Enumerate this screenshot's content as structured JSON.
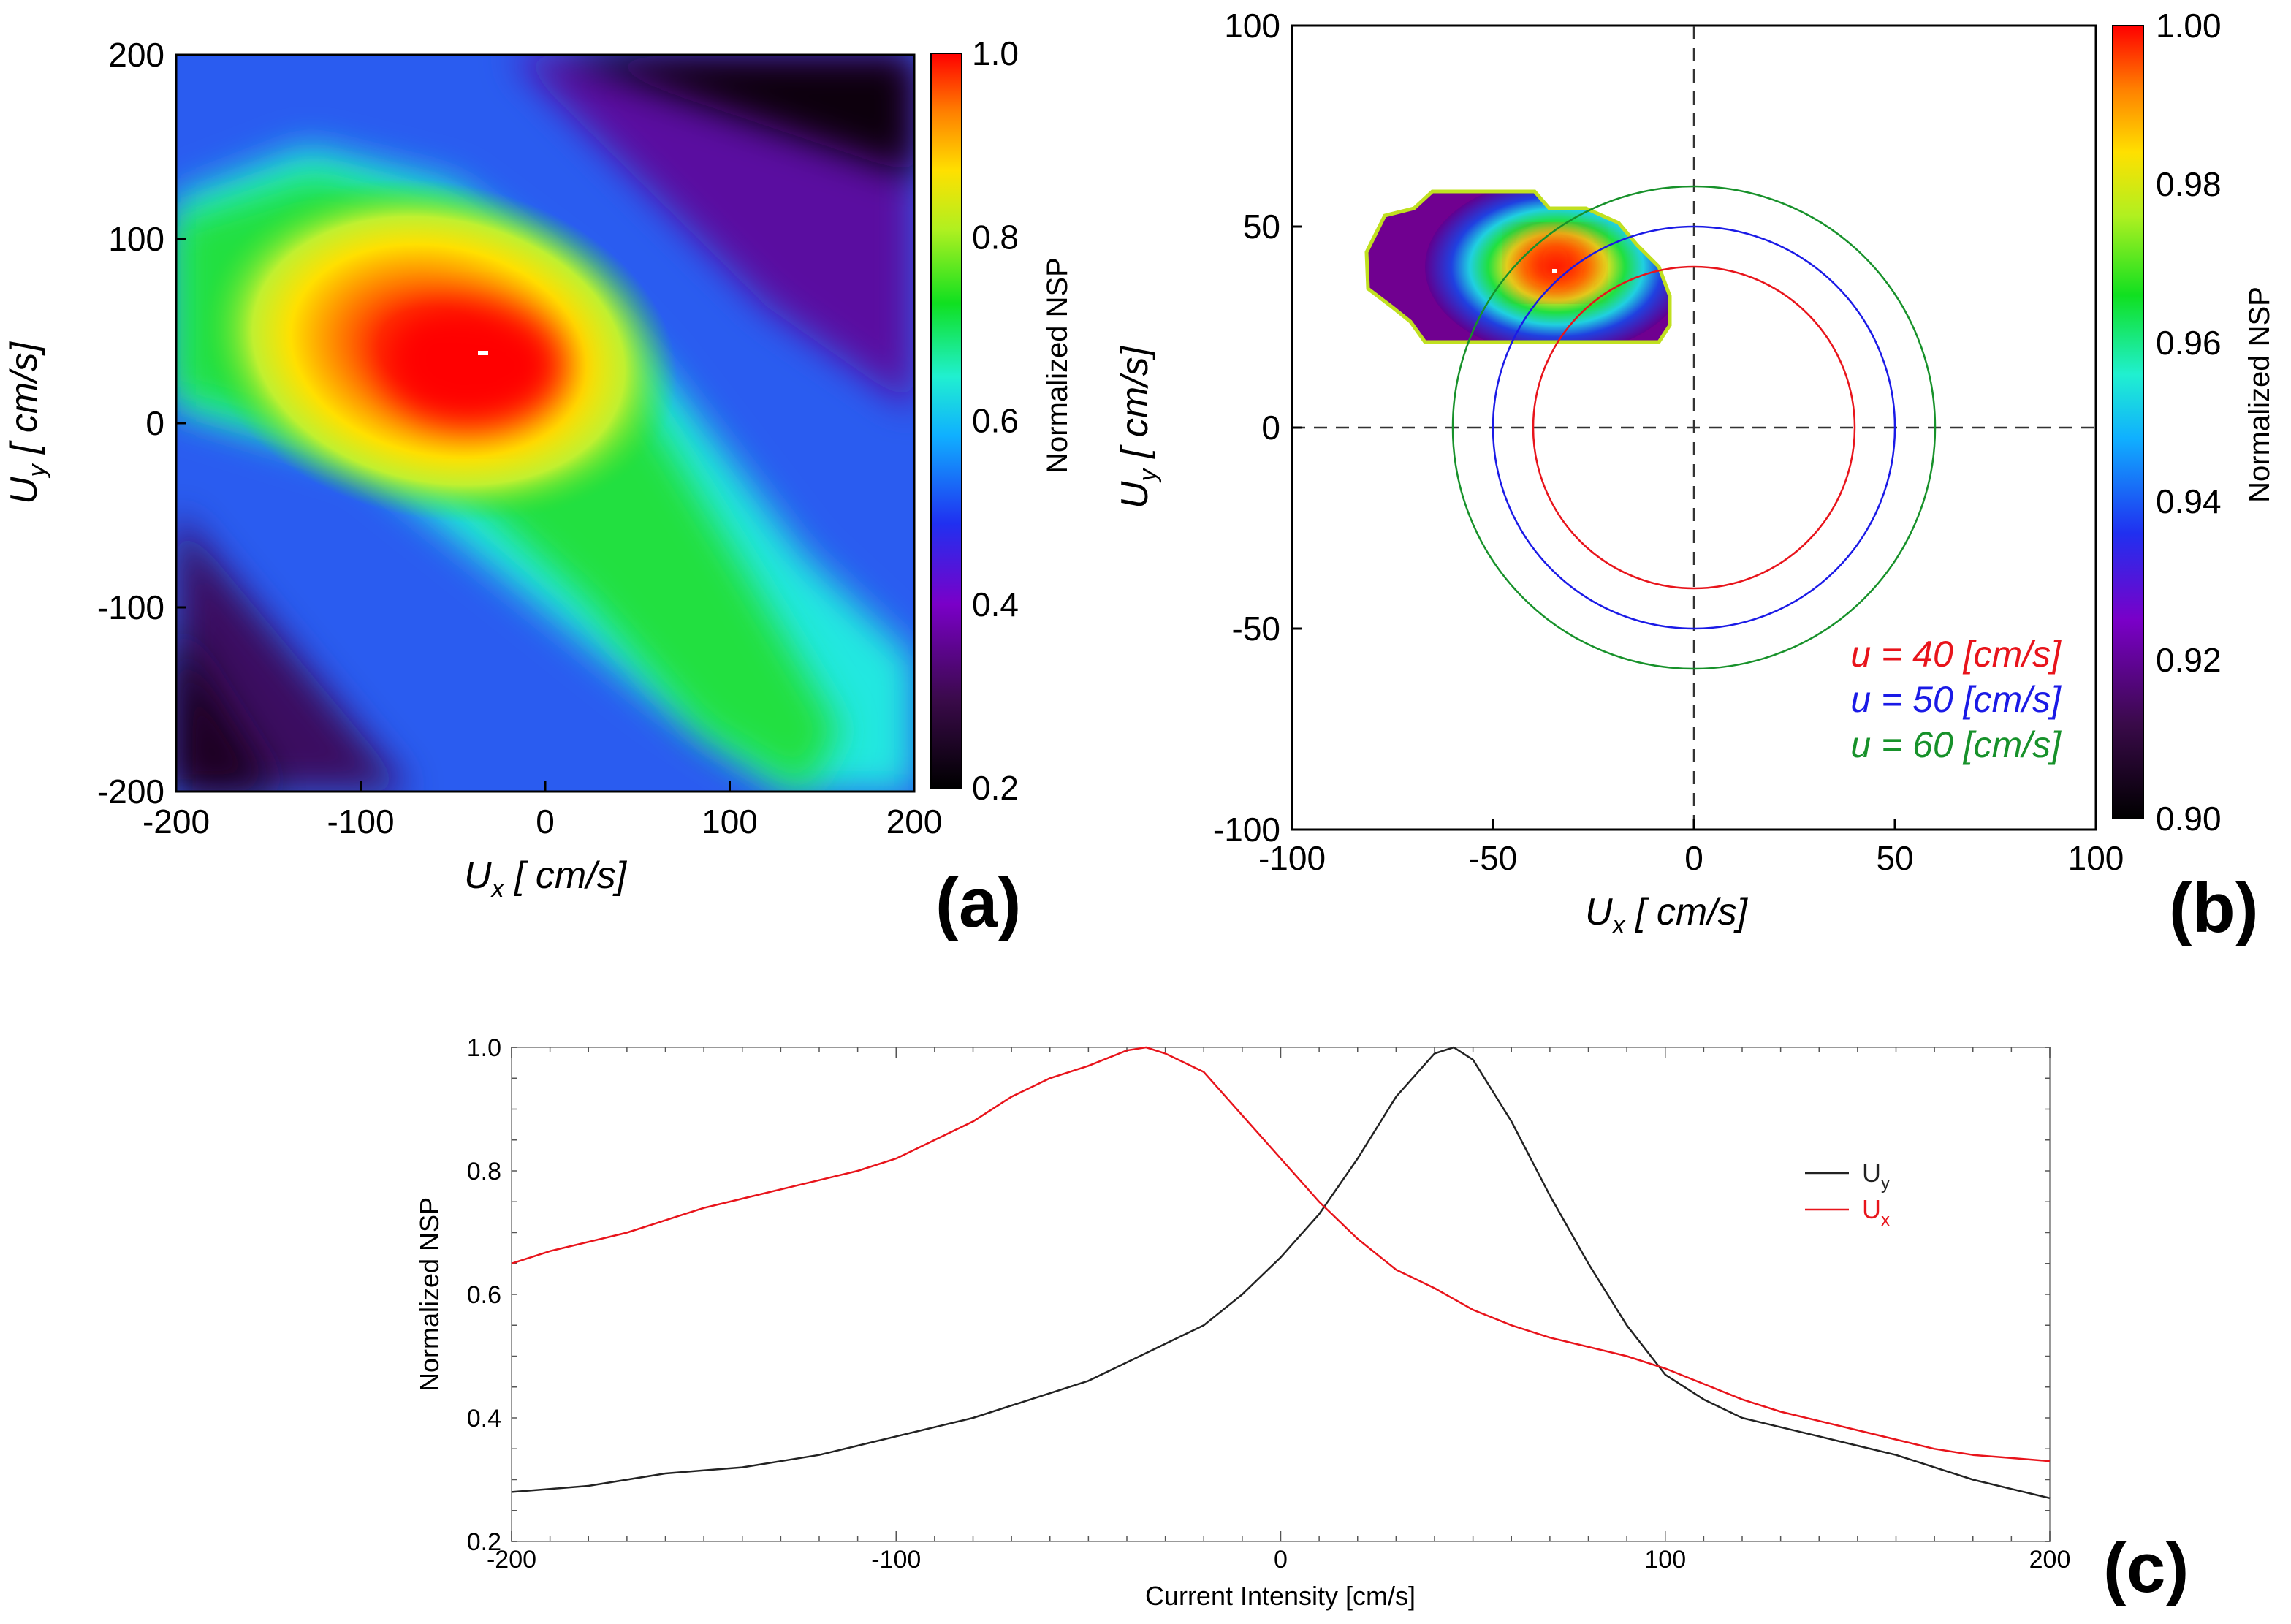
{
  "chart_data": [
    {
      "id": "a",
      "type": "heatmap",
      "panel_label": "(a)",
      "xlabel": "U",
      "xlabel_sub": "x",
      "xlabel_unit": " [ cm/s]",
      "ylabel": "U",
      "ylabel_sub": "y",
      "ylabel_unit": " [ cm/s]",
      "xlim": [
        -200,
        200
      ],
      "ylim": [
        -200,
        200
      ],
      "xticks": [
        "-200",
        "-100",
        "0",
        "100",
        "200"
      ],
      "yticks": [
        "-200",
        "-100",
        "0",
        "100",
        "200"
      ],
      "colorbar": {
        "label": "Normalized NSP",
        "range": [
          0.2,
          1.0
        ],
        "ticks": [
          "0.2",
          "0.4",
          "0.6",
          "0.8",
          "1.0"
        ]
      },
      "peak": {
        "x": -35,
        "y": 40,
        "value": 1.0
      }
    },
    {
      "id": "b",
      "type": "heatmap",
      "panel_label": "(b)",
      "xlabel": "U",
      "xlabel_sub": "x",
      "xlabel_unit": " [ cm/s]",
      "ylabel": "U",
      "ylabel_sub": "y",
      "ylabel_unit": " [ cm/s]",
      "xlim": [
        -100,
        100
      ],
      "ylim": [
        -100,
        100
      ],
      "xticks": [
        "-100",
        "-50",
        "0",
        "50",
        "100"
      ],
      "yticks": [
        "-100",
        "-50",
        "0",
        "50",
        "100"
      ],
      "colorbar": {
        "label": "Normalized NSP",
        "range": [
          0.9,
          1.0
        ],
        "ticks": [
          "0.90",
          "0.92",
          "0.94",
          "0.96",
          "0.98",
          "1.00"
        ]
      },
      "peak": {
        "x": -36,
        "y": 38,
        "value": 1.0
      },
      "circles": [
        {
          "radius": 40,
          "label": "u = 40 [cm/s]",
          "color": "#e8141b"
        },
        {
          "radius": 50,
          "label": "u = 50 [cm/s]",
          "color": "#1a1ae6"
        },
        {
          "radius": 60,
          "label": "u = 60 [cm/s]",
          "color": "#17912a"
        }
      ]
    },
    {
      "id": "c",
      "type": "line",
      "panel_label": "(c)",
      "xlabel": "Current Intensity [cm/s]",
      "ylabel": "Normalized NSP",
      "xlim": [
        -200,
        200
      ],
      "ylim": [
        0.2,
        1.0
      ],
      "xticks": [
        "-200",
        "-100",
        "0",
        "100",
        "200"
      ],
      "yticks": [
        "0.2",
        "0.4",
        "0.6",
        "0.8",
        "1.0"
      ],
      "series": [
        {
          "name": "U",
          "sub": "y",
          "color": "#222222",
          "x": [
            -200,
            -190,
            -180,
            -170,
            -160,
            -150,
            -140,
            -130,
            -120,
            -110,
            -100,
            -90,
            -80,
            -70,
            -60,
            -50,
            -40,
            -30,
            -20,
            -10,
            0,
            10,
            20,
            30,
            40,
            45,
            50,
            60,
            70,
            80,
            90,
            100,
            110,
            120,
            130,
            140,
            150,
            160,
            170,
            180,
            190,
            200
          ],
          "y": [
            0.28,
            0.285,
            0.29,
            0.3,
            0.31,
            0.315,
            0.32,
            0.33,
            0.34,
            0.355,
            0.37,
            0.385,
            0.4,
            0.42,
            0.44,
            0.46,
            0.49,
            0.52,
            0.55,
            0.6,
            0.66,
            0.73,
            0.82,
            0.92,
            0.99,
            1.0,
            0.98,
            0.88,
            0.76,
            0.65,
            0.55,
            0.47,
            0.43,
            0.4,
            0.385,
            0.37,
            0.355,
            0.34,
            0.32,
            0.3,
            0.285,
            0.27
          ]
        },
        {
          "name": "U",
          "sub": "x",
          "color": "#e8141b",
          "x": [
            -200,
            -190,
            -180,
            -170,
            -160,
            -150,
            -140,
            -130,
            -120,
            -110,
            -100,
            -90,
            -80,
            -70,
            -60,
            -50,
            -40,
            -35,
            -30,
            -20,
            -10,
            0,
            10,
            20,
            30,
            40,
            50,
            60,
            70,
            80,
            90,
            100,
            110,
            120,
            130,
            140,
            150,
            160,
            170,
            180,
            190,
            200
          ],
          "y": [
            0.65,
            0.67,
            0.685,
            0.7,
            0.72,
            0.74,
            0.755,
            0.77,
            0.785,
            0.8,
            0.82,
            0.85,
            0.88,
            0.92,
            0.95,
            0.97,
            0.995,
            1.0,
            0.99,
            0.96,
            0.89,
            0.82,
            0.75,
            0.69,
            0.64,
            0.61,
            0.575,
            0.55,
            0.53,
            0.515,
            0.5,
            0.48,
            0.455,
            0.43,
            0.41,
            0.395,
            0.38,
            0.365,
            0.35,
            0.34,
            0.335,
            0.33
          ]
        }
      ]
    }
  ]
}
